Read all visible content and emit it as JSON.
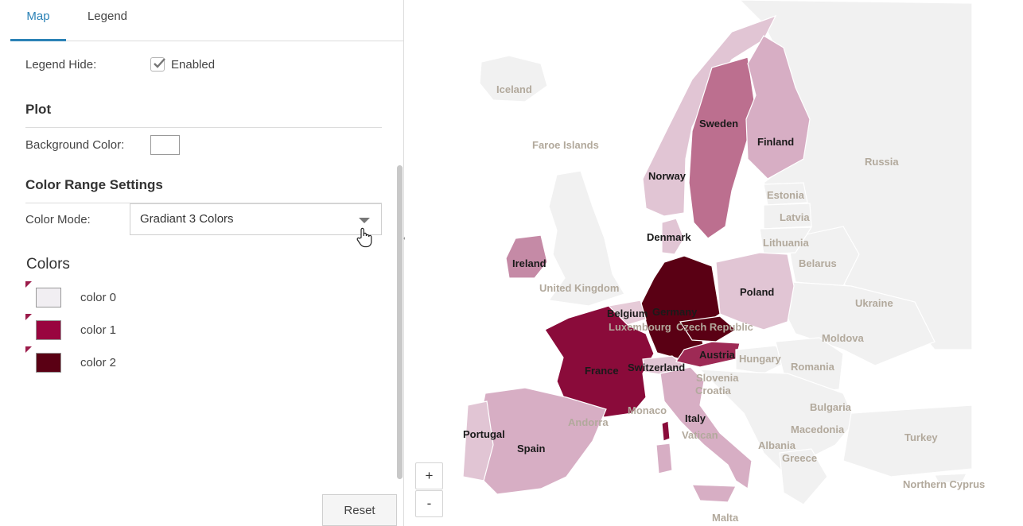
{
  "tabs": {
    "map": "Map",
    "legend": "Legend"
  },
  "legend_hide": {
    "label": "Legend Hide:",
    "value": "Enabled",
    "checked": true
  },
  "plot": {
    "title": "Plot",
    "background_label": "Background Color:",
    "background_value": "#ffffff"
  },
  "color_range": {
    "title": "Color Range Settings",
    "mode_label": "Color Mode:",
    "mode_value": "Gradiant 3 Colors"
  },
  "colors": {
    "title": "Colors",
    "items": [
      {
        "label": "color 0",
        "hex": "#f1eef2"
      },
      {
        "label": "color 1",
        "hex": "#99053f"
      },
      {
        "label": "color 2",
        "hex": "#5a0014"
      }
    ]
  },
  "reset_label": "Reset",
  "zoom": {
    "in": "+",
    "out": "-"
  },
  "map": {
    "labels": {
      "iceland": "Iceland",
      "faroe": "Faroe Islands",
      "norway": "Norway",
      "sweden": "Sweden",
      "finland": "Finland",
      "russia": "Russia",
      "estonia": "Estonia",
      "latvia": "Latvia",
      "lithuania": "Lithuania",
      "belarus": "Belarus",
      "denmark": "Denmark",
      "ireland": "Ireland",
      "uk": "United Kingdom",
      "poland": "Poland",
      "ukraine": "Ukraine",
      "belgium": "Belgium",
      "germany": "Germany",
      "luxembourg": "Luxembourg",
      "czech": "Czech Republic",
      "moldova": "Moldova",
      "austria": "Austria",
      "hungary": "Hungary",
      "france": "France",
      "switzerland": "Switzerland",
      "slovenia": "Slovenia",
      "romania": "Romania",
      "croatia": "Croatia",
      "bulgaria": "Bulgaria",
      "monaco": "Monaco",
      "italy": "Italy",
      "andorra": "Andorra",
      "portugal": "Portugal",
      "spain": "Spain",
      "vatican": "Vatican",
      "macedonia": "Macedonia",
      "albania": "Albania",
      "greece": "Greece",
      "turkey": "Turkey",
      "northern_cyprus": "Northern Cyprus",
      "malta": "Malta"
    },
    "fills": {
      "default": "#f1f1f1",
      "light": "#e1c5d4",
      "medium": "#d7aec4",
      "sweden": "#bc6f8f",
      "ireland": "#c58aa6",
      "france": "#8a0b3a",
      "germany": "#5a0014",
      "austria": "#9e2a55",
      "belgium": "#e6cbd8",
      "corsica": "#8a0b3a"
    }
  }
}
